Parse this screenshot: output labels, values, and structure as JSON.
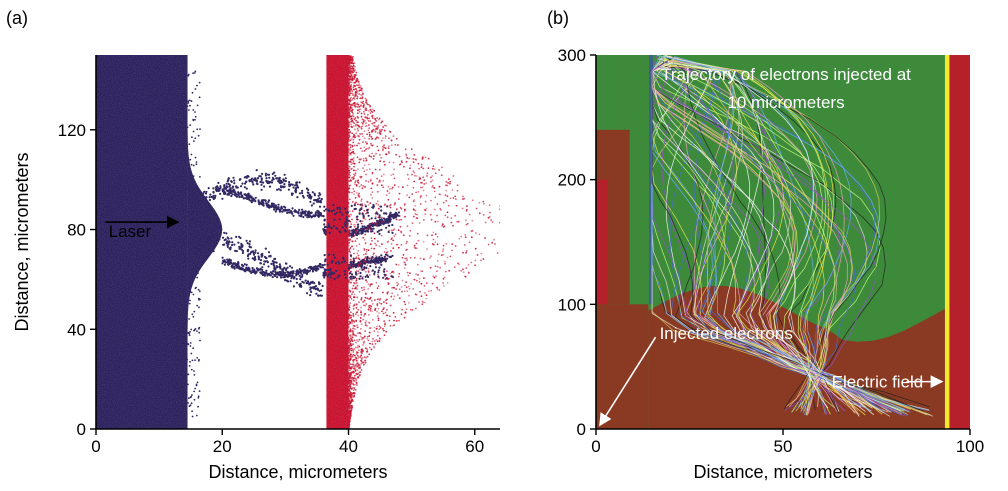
{
  "chart_data": [
    {
      "panel_label": "(a)",
      "type": "scatter",
      "xlabel": "Distance, micrometers",
      "ylabel": "Distance, micrometers",
      "xlim": [
        0,
        64
      ],
      "ylim": [
        0,
        150
      ],
      "xticks": [
        0,
        20,
        40,
        60
      ],
      "yticks": [
        0,
        40,
        80,
        120
      ],
      "annotations": [
        {
          "text": "Laser",
          "x": 2,
          "y": 77,
          "arrow_to": [
            13,
            83
          ]
        }
      ],
      "series": [
        {
          "color": "#2a1f5c",
          "bulk_x": [
            0,
            14.5
          ],
          "filaments": [
            {
              "x": [
                15,
                36
              ],
              "y": [
                78,
                100
              ]
            },
            {
              "x": [
                15,
                36
              ],
              "y": [
                52,
                75
              ]
            },
            {
              "x": [
                20,
                36
              ],
              "y": [
                86,
                96
              ]
            },
            {
              "x": [
                20,
                36
              ],
              "y": [
                62,
                72
              ]
            },
            {
              "x": [
                36,
                48
              ],
              "y": [
                78,
                88
              ]
            },
            {
              "x": [
                36,
                46
              ],
              "y": [
                62,
                68
              ]
            }
          ]
        },
        {
          "color": "#c8102e",
          "bulk_x": [
            36.5,
            40
          ],
          "envelope": [
            {
              "x": 62.5,
              "y": 80
            },
            {
              "x": 60,
              "y": 95
            },
            {
              "x": 60,
              "y": 65
            },
            {
              "x": 55,
              "y": 108
            },
            {
              "x": 55,
              "y": 52
            },
            {
              "x": 50,
              "y": 120
            },
            {
              "x": 50,
              "y": 40
            },
            {
              "x": 45,
              "y": 130
            },
            {
              "x": 45,
              "y": 30
            }
          ]
        }
      ]
    },
    {
      "panel_label": "(b)",
      "type": "line",
      "xlabel": "Distance, micrometers",
      "ylabel": "",
      "xlim": [
        0,
        100
      ],
      "ylim": [
        0,
        300
      ],
      "xticks": [
        0,
        50,
        100
      ],
      "yticks": [
        0,
        100,
        200,
        300
      ],
      "title": "Trajectory of electrons injected at\n10 micrometers",
      "annotations": [
        {
          "text": "Injected electrons",
          "x": 17,
          "y": 72,
          "arrow_to": [
            0,
            0
          ]
        },
        {
          "text": "Electric field",
          "x": 63,
          "y": 38,
          "arrow_to": [
            93,
            38
          ]
        }
      ],
      "background_colors": {
        "field_green": "#3d8a3b",
        "field_brown": "#8a3a22",
        "field_red": "#b5202a",
        "field_yellow": "#f5e62e"
      }
    }
  ]
}
